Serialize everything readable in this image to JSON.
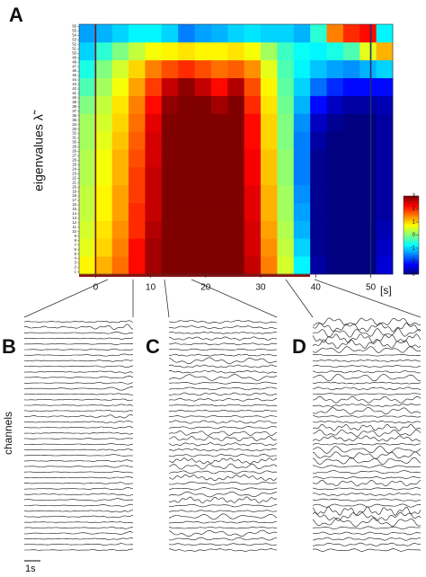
{
  "chart_data": {
    "type": "heatmap",
    "panel_labels": [
      "A",
      "B",
      "C",
      "D"
    ],
    "ylabel": "eigenvalues λ̃",
    "xunit": "[s]",
    "trace_label": "channels",
    "scale_label": "1s",
    "colormap": "jet",
    "xlim": [
      -3,
      54
    ],
    "ylim": [
      0.5,
      56.5
    ],
    "xticks": [
      0,
      10,
      20,
      30,
      40,
      50
    ],
    "yticks": [
      1,
      2,
      3,
      4,
      5,
      6,
      7,
      8,
      9,
      10,
      11,
      12,
      13,
      14,
      15,
      16,
      17,
      18,
      19,
      20,
      21,
      22,
      23,
      24,
      25,
      26,
      27,
      28,
      29,
      30,
      31,
      32,
      33,
      34,
      35,
      36,
      37,
      38,
      39,
      40,
      41,
      42,
      43,
      44,
      45,
      46,
      47,
      48,
      49,
      50,
      51,
      52,
      53,
      54,
      55,
      56
    ],
    "vlines": [
      0,
      50
    ],
    "clim": [
      -3,
      3
    ],
    "cticks": [
      -3,
      -2,
      -1,
      0,
      1,
      2,
      3
    ],
    "x": [
      -1.5,
      1.5,
      4.5,
      7.5,
      10.5,
      13.5,
      16.5,
      19.5,
      22.5,
      25.5,
      28.5,
      31.5,
      34.5,
      37.5,
      40.5,
      43.5,
      46.5,
      49.5,
      52.5
    ],
    "y": [
      2.5,
      6.5,
      10.5,
      14.5,
      18.5,
      22.5,
      26.5,
      30.5,
      34.5,
      38.5,
      42.5,
      46.5,
      50.5,
      54.5
    ],
    "z": [
      [
        0.8,
        1.2,
        1.6,
        2.2,
        2.8,
        3,
        3,
        3,
        3,
        3,
        2.6,
        1.5,
        0.5,
        -0.8,
        -2.8,
        -3,
        -3,
        -3,
        -2.5
      ],
      [
        0.6,
        1,
        1.5,
        2.2,
        2.8,
        3,
        3,
        3,
        3,
        3,
        2.5,
        1.4,
        0.4,
        -1,
        -2.9,
        -3,
        -3,
        -3,
        -2.6
      ],
      [
        0.5,
        0.9,
        1.4,
        2,
        2.7,
        3,
        3,
        3,
        3,
        3,
        2.5,
        1.3,
        0.3,
        -1.2,
        -2.9,
        -3,
        -3,
        -3,
        -2.7
      ],
      [
        0.4,
        0.8,
        1.3,
        2,
        2.6,
        3,
        3,
        3,
        3,
        3,
        2.4,
        1.2,
        0.2,
        -1.3,
        -2.9,
        -3,
        -3,
        -3,
        -2.8
      ],
      [
        0.4,
        0.8,
        1.3,
        1.9,
        2.6,
        3,
        3,
        3,
        3,
        3,
        2.4,
        1.2,
        0.2,
        -1.4,
        -2.9,
        -3,
        -3,
        -3,
        -2.8
      ],
      [
        0.3,
        0.7,
        1.2,
        1.9,
        2.6,
        3,
        3,
        3,
        3,
        3,
        2.3,
        1.1,
        0.1,
        -1.5,
        -2.9,
        -3,
        -3,
        -3,
        -2.8
      ],
      [
        0.3,
        0.7,
        1.2,
        1.8,
        2.5,
        3,
        3,
        3,
        3,
        3,
        2.3,
        1.1,
        0.1,
        -1.5,
        -2.9,
        -3,
        -3,
        -3,
        -2.8
      ],
      [
        0.2,
        0.6,
        1.1,
        1.7,
        2.5,
        3,
        3,
        3,
        3,
        3,
        2.2,
        1,
        0,
        -1.5,
        -2.8,
        -3,
        -3,
        -3,
        -2.8
      ],
      [
        0.2,
        0.5,
        1,
        1.6,
        2.4,
        3,
        3,
        3,
        3,
        3,
        2.2,
        1,
        0,
        -1.4,
        -2.6,
        -2.9,
        -3,
        -3,
        -2.8
      ],
      [
        0,
        0.4,
        0.9,
        1.5,
        2.2,
        2.9,
        3,
        3,
        2.8,
        3,
        2,
        0.9,
        -0.1,
        -1.2,
        -2.2,
        -2.6,
        -2.8,
        -2.8,
        -2.7
      ],
      [
        -0.3,
        0.2,
        0.7,
        1.3,
        1.9,
        2.6,
        2.9,
        2.6,
        2.2,
        2.7,
        1.8,
        0.8,
        -0.2,
        -1,
        -1.6,
        -2,
        -2.2,
        -2.2,
        -2.2
      ],
      [
        -0.6,
        0,
        0.5,
        1,
        1.5,
        1.8,
        2,
        1.8,
        1.6,
        1.7,
        1.4,
        0.6,
        -0.3,
        -0.8,
        -1.1,
        -1.3,
        -1.4,
        -1.2,
        -1
      ],
      [
        -1,
        -0.5,
        0,
        0.4,
        0.7,
        0.8,
        0.9,
        0.8,
        0.8,
        0.9,
        0.7,
        0.2,
        -0.4,
        -0.7,
        -0.8,
        -0.6,
        -0.3,
        0.6,
        1.2
      ],
      [
        -1.3,
        -1.2,
        -1,
        -0.8,
        -0.8,
        -1,
        -1.5,
        -1.3,
        -1.2,
        -1,
        -0.9,
        -1,
        -1,
        -1.2,
        -0.5,
        1.5,
        2,
        2.2,
        -0.8
      ]
    ]
  }
}
